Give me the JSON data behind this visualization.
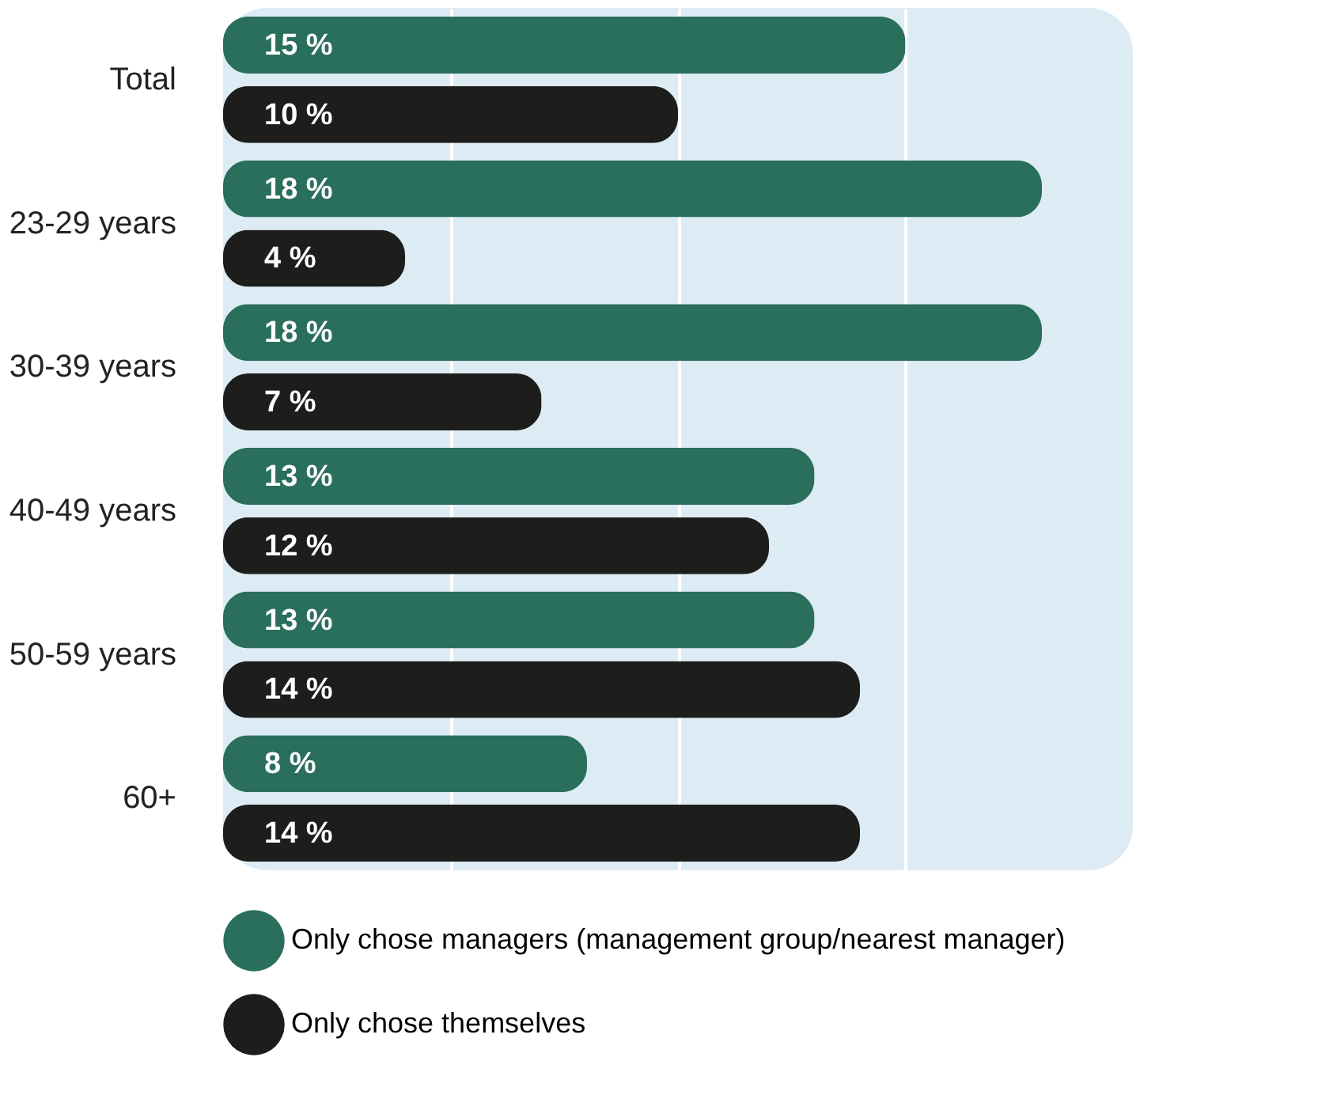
{
  "chart_data": {
    "type": "bar",
    "orientation": "horizontal",
    "categories": [
      "Total",
      "23-29 years",
      "30-39 years",
      "40-49 years",
      "50-59 years",
      "60+"
    ],
    "series": [
      {
        "name": "Only chose managers (management group/nearest manager)",
        "color": "#2a6e5c",
        "values": [
          15,
          18,
          18,
          13,
          13,
          8
        ],
        "value_labels": [
          "15 %",
          "18 %",
          "18 %",
          "13 %",
          "13 %",
          "8 %"
        ]
      },
      {
        "name": "Only chose themselves",
        "color": "#1d1d1b",
        "values": [
          10,
          4,
          7,
          12,
          14,
          14
        ],
        "value_labels": [
          "10 %",
          "4 %",
          "7 %",
          "12 %",
          "14 %",
          "14 %"
        ]
      }
    ],
    "xlim": [
      0,
      20
    ],
    "xticks": [
      {
        "value": 5,
        "label": null
      },
      {
        "value": 10,
        "label": null
      },
      {
        "value": 15,
        "label": null
      }
    ],
    "tick_labels": "y",
    "grid": "x",
    "legend": "bottom"
  }
}
